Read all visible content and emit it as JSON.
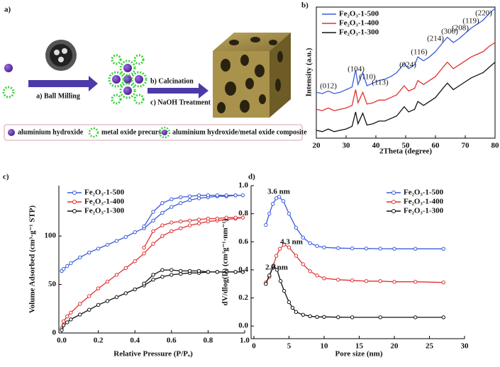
{
  "panel_labels": [
    "a)",
    "b)",
    "c)",
    "d)"
  ],
  "schematic": {
    "step_1": "a) Ball Milling",
    "step_2": "b) Calcination",
    "step_3": "c) NaOH Treatment",
    "legend": [
      "aluminium hydroxide",
      "metal oxide precursor",
      "aluminium hydroxide/metal oxide composite"
    ]
  },
  "chart_data": [
    {
      "type": "line",
      "xlabel": "2Theta (degree)",
      "ylabel": "Intensity (a.u.)",
      "x": [
        20,
        22,
        24,
        26,
        28,
        30,
        32,
        33.2,
        34,
        35.6,
        37,
        39,
        41,
        43,
        45,
        47,
        49.5,
        51,
        53,
        54.1,
        56,
        58,
        60,
        62.5,
        64,
        66,
        68,
        70,
        72,
        74,
        76,
        78,
        80
      ],
      "series": [
        {
          "name": "Fe₂O₃-1-500",
          "color": "#3b5bdb",
          "values": [
            35,
            34,
            36,
            34,
            35,
            37,
            39,
            52,
            41,
            50,
            40,
            42,
            44,
            45,
            47,
            50,
            57,
            53,
            56,
            62,
            59,
            62,
            66,
            73,
            77,
            73,
            76,
            80,
            84,
            87,
            90,
            95,
            99
          ]
        },
        {
          "name": "Fe₂O₃-1-400",
          "color": "#e03131",
          "values": [
            22,
            21,
            23,
            21,
            22,
            23,
            25,
            37,
            27,
            35,
            26,
            27,
            29,
            29,
            31,
            33,
            40,
            36,
            38,
            44,
            41,
            44,
            47,
            54,
            58,
            53,
            56,
            59,
            62,
            64,
            66,
            70,
            73
          ]
        },
        {
          "name": "Fe₂O₃-1-300",
          "color": "#111111",
          "values": [
            6,
            5,
            7,
            5,
            6,
            7,
            9,
            20,
            11,
            19,
            10,
            11,
            13,
            13,
            15,
            17,
            24,
            20,
            22,
            28,
            25,
            28,
            31,
            38,
            42,
            37,
            40,
            43,
            46,
            48,
            50,
            54,
            58
          ]
        }
      ],
      "xlim": [
        20,
        80
      ],
      "xticks": [
        20,
        30,
        40,
        50,
        60,
        70,
        80
      ],
      "ylim": [
        0,
        100
      ],
      "annotations": [
        "(012)",
        "(104)",
        "(110)",
        "(113)",
        "(024)",
        "(116)",
        "(214)",
        "(300)",
        "(208)",
        "(119)",
        "(220)"
      ],
      "legend": "upper-left",
      "frame": "box",
      "markers": false
    },
    {
      "type": "line",
      "xlabel": "Relative Pressure (P/Pₒ)",
      "ylabel": "Volume Adsorbed  (cm³·g⁻¹ STP)",
      "series": [
        {
          "name": "Fe₂O₃-1-500",
          "color": "#3b5bdb",
          "x": [
            0,
            0.01,
            0.03,
            0.05,
            0.1,
            0.15,
            0.2,
            0.25,
            0.3,
            0.35,
            0.4,
            0.45,
            0.5,
            0.55,
            0.6,
            0.65,
            0.7,
            0.75,
            0.8,
            0.85,
            0.9,
            0.95,
            0.99,
            0.95,
            0.9,
            0.85,
            0.8,
            0.75,
            0.7,
            0.65,
            0.6,
            0.55,
            0.5,
            0.45
          ],
          "values": [
            64,
            66,
            69,
            72,
            78,
            83,
            87,
            91,
            95,
            99,
            104,
            108,
            116,
            124,
            130,
            134,
            137,
            139,
            140,
            141,
            141,
            142,
            142,
            142,
            142,
            142,
            142,
            142,
            141,
            140,
            138,
            134,
            125,
            110
          ]
        },
        {
          "name": "Fe₂O₃-1-400",
          "color": "#e03131",
          "x": [
            0,
            0.01,
            0.03,
            0.05,
            0.1,
            0.15,
            0.2,
            0.25,
            0.3,
            0.35,
            0.4,
            0.45,
            0.5,
            0.55,
            0.6,
            0.65,
            0.7,
            0.75,
            0.8,
            0.85,
            0.9,
            0.95,
            0.99,
            0.95,
            0.9,
            0.85,
            0.8,
            0.75,
            0.7,
            0.65,
            0.6,
            0.55,
            0.5,
            0.45
          ],
          "values": [
            5,
            12,
            17,
            21,
            30,
            38,
            46,
            53,
            60,
            67,
            74,
            82,
            92,
            100,
            105,
            108,
            111,
            113,
            115,
            116,
            117,
            118,
            119,
            119,
            119,
            118,
            118,
            117,
            116,
            115,
            114,
            111,
            105,
            88
          ]
        },
        {
          "name": "Fe₂O₃-1-300",
          "color": "#111111",
          "x": [
            0,
            0.01,
            0.03,
            0.05,
            0.1,
            0.15,
            0.2,
            0.25,
            0.3,
            0.35,
            0.4,
            0.45,
            0.5,
            0.55,
            0.6,
            0.65,
            0.7,
            0.75,
            0.8,
            0.85,
            0.9,
            0.95,
            0.99,
            0.95,
            0.9,
            0.85,
            0.8,
            0.75,
            0.7,
            0.65,
            0.6,
            0.55,
            0.5,
            0.45
          ],
          "values": [
            3,
            8,
            11,
            14,
            19,
            24,
            29,
            33,
            37,
            41,
            45,
            49,
            55,
            58,
            60,
            61,
            62,
            62,
            63,
            63,
            63,
            63,
            63,
            63,
            63,
            63,
            63,
            64,
            64,
            64,
            65,
            65,
            60,
            51
          ]
        }
      ],
      "xlim": [
        0,
        1
      ],
      "xticks": [
        {
          "value": 0,
          "label": "0.0"
        },
        0.2,
        0.4,
        0.6,
        0.8,
        {
          "value": 1,
          "label": "1.0"
        }
      ],
      "ylim": [
        0,
        152
      ],
      "yticks": [
        0,
        50,
        100
      ],
      "legend": "upper-left",
      "frame": "axes",
      "markers": true
    },
    {
      "type": "line",
      "xlabel": "Pore size (nm)",
      "ylabel": "dV/dlog(D)  (cm³g⁻¹·nm⁻¹)",
      "series": [
        {
          "name": "Fe₂O₃-1-500",
          "color": "#3b5bdb",
          "x": [
            1.7,
            2.2,
            2.7,
            3.2,
            3.6,
            4.2,
            5,
            6,
            7,
            8,
            9,
            10,
            12,
            14,
            16,
            18,
            20,
            23,
            27
          ],
          "values": [
            0.72,
            0.8,
            0.87,
            0.91,
            0.92,
            0.89,
            0.8,
            0.7,
            0.63,
            0.59,
            0.57,
            0.56,
            0.555,
            0.553,
            0.552,
            0.551,
            0.55,
            0.55,
            0.55
          ]
        },
        {
          "name": "Fe₂O₃-1-400",
          "color": "#e03131",
          "x": [
            1.7,
            2.2,
            2.7,
            3.2,
            3.7,
            4.3,
            5,
            6,
            7,
            8,
            9,
            10,
            12,
            14,
            16,
            18,
            20,
            23,
            27
          ],
          "values": [
            0.31,
            0.35,
            0.42,
            0.5,
            0.55,
            0.58,
            0.56,
            0.5,
            0.44,
            0.39,
            0.36,
            0.34,
            0.33,
            0.325,
            0.32,
            0.32,
            0.315,
            0.315,
            0.31
          ]
        },
        {
          "name": "Fe₂O₃-1-300",
          "color": "#111111",
          "x": [
            1.7,
            2.2,
            2.8,
            3.3,
            3.8,
            4.3,
            5,
            5.5,
            6,
            7,
            8,
            9,
            10,
            12,
            14,
            18,
            23,
            27
          ],
          "values": [
            0.3,
            0.36,
            0.43,
            0.4,
            0.32,
            0.25,
            0.17,
            0.13,
            0.1,
            0.08,
            0.07,
            0.065,
            0.065,
            0.063,
            0.062,
            0.062,
            0.062,
            0.062
          ]
        }
      ],
      "xlim": [
        0,
        30
      ],
      "xticks": [
        0,
        5,
        10,
        15,
        20,
        25,
        30
      ],
      "ylim": [
        -0.09,
        1
      ],
      "yticks": [
        {
          "value": 0,
          "label": "0.0"
        },
        0.2,
        0.4,
        0.6,
        0.8,
        {
          "value": 1,
          "label": "1.0"
        }
      ],
      "annotations": [
        "3.6 nm",
        "4.3 nm",
        "2.8 nm"
      ],
      "legend": "upper-right",
      "frame": "axes",
      "markers": true
    }
  ]
}
